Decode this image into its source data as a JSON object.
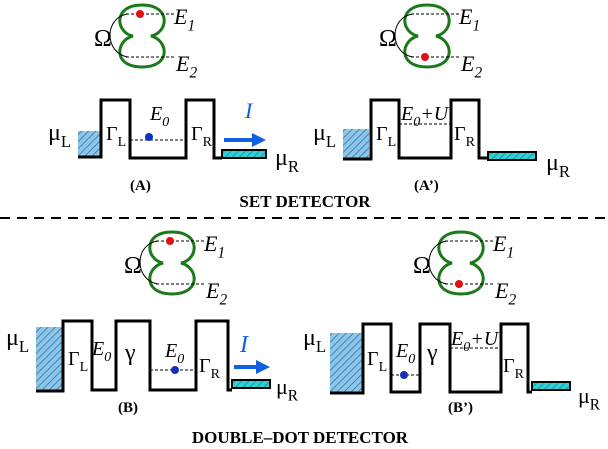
{
  "panels": [
    {
      "caption": "(A)",
      "omega": "Ω",
      "levels": [
        {
          "base": "E",
          "sub": "1"
        },
        {
          "base": "E",
          "sub": "2"
        }
      ],
      "mu_left": {
        "base": "μ",
        "sub": "L"
      },
      "gamma_left": {
        "base": "Γ",
        "sub": "L"
      },
      "dot_level": {
        "base": "E",
        "sub": "0"
      },
      "gamma_right": {
        "base": "Γ",
        "sub": "R"
      },
      "current": "I",
      "mu_right": {
        "base": "μ",
        "sub": "R"
      }
    },
    {
      "caption": "(A’)",
      "omega": "Ω",
      "levels": [
        {
          "base": "E",
          "sub": "1"
        },
        {
          "base": "E",
          "sub": "2"
        }
      ],
      "mu_left": {
        "base": "μ",
        "sub": "L"
      },
      "gamma_left": {
        "base": "Γ",
        "sub": "L"
      },
      "dot_level": {
        "base": "E",
        "sub": "0",
        "suffix": "+U"
      },
      "gamma_right": {
        "base": "Γ",
        "sub": "R"
      },
      "mu_right": {
        "base": "μ",
        "sub": "R"
      }
    },
    {
      "caption": "(B)",
      "omega": "Ω",
      "levels": [
        {
          "base": "E",
          "sub": "1"
        },
        {
          "base": "E",
          "sub": "2"
        }
      ],
      "mu_left": {
        "base": "μ",
        "sub": "L"
      },
      "gamma_left": {
        "base": "Γ",
        "sub": "L"
      },
      "first_dot_level": {
        "base": "E",
        "sub": "0"
      },
      "gamma_middle": "γ",
      "dot_level": {
        "base": "E",
        "sub": "0"
      },
      "gamma_right": {
        "base": "Γ",
        "sub": "R"
      },
      "current": "I",
      "mu_right": {
        "base": "μ",
        "sub": "R"
      }
    },
    {
      "caption": "(B’)",
      "omega": "Ω",
      "levels": [
        {
          "base": "E",
          "sub": "1"
        },
        {
          "base": "E",
          "sub": "2"
        }
      ],
      "mu_left": {
        "base": "μ",
        "sub": "L"
      },
      "gamma_left": {
        "base": "Γ",
        "sub": "L"
      },
      "first_dot_level": {
        "base": "E",
        "sub": "0"
      },
      "gamma_middle": "γ",
      "dot_level": {
        "base": "E",
        "sub": "0",
        "suffix": "+U"
      },
      "gamma_right": {
        "base": "Γ",
        "sub": "R"
      },
      "mu_right": {
        "base": "μ",
        "sub": "R"
      }
    }
  ],
  "section_titles": [
    "SET  DETECTOR",
    "DOUBLE–DOT DETECTOR"
  ]
}
